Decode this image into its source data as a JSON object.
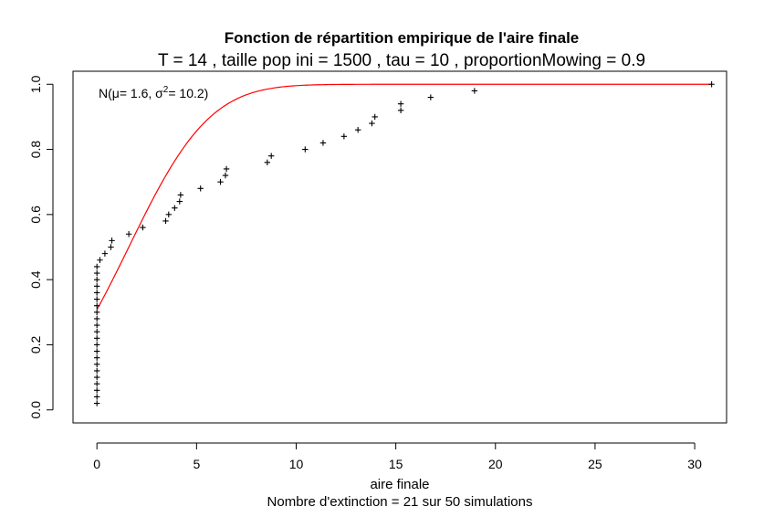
{
  "chart_data": {
    "type": "scatter",
    "title": "Fonction de répartition empirique de l'aire finale",
    "subtitle": "T = 14 , taille pop ini =  1500 , tau = 10 , proportionMowing = 0.9",
    "xlabel": "aire finale",
    "caption": "Nombre d'extinction =  21  sur  50  simulations",
    "ylabel": "",
    "xlim": [
      -1.2,
      31.6
    ],
    "ylim": [
      -0.04,
      1.04
    ],
    "x_ticks": [
      0,
      5,
      10,
      15,
      20,
      25,
      30
    ],
    "x_tick_labels": [
      "0",
      "5",
      "10",
      "15",
      "20",
      "25",
      "30"
    ],
    "y_ticks": [
      0.0,
      0.2,
      0.4,
      0.6,
      0.8,
      1.0
    ],
    "y_tick_labels": [
      "0.0",
      "0.2",
      "0.4",
      "0.6",
      "0.8",
      "1.0"
    ],
    "grid": false,
    "legend": {
      "prefix": "N(",
      "mu_label": "μ= 1.6, ",
      "sigma_symbol": "σ",
      "sigma_exp": "2",
      "sigma_value": "= 10.2)",
      "placement": "top-left"
    },
    "series": [
      {
        "name": "",
        "marker": "plus",
        "color": "#000000",
        "points": [
          [
            0,
            0.02
          ],
          [
            0,
            0.04
          ],
          [
            0,
            0.06
          ],
          [
            0,
            0.08
          ],
          [
            0,
            0.1
          ],
          [
            0,
            0.12
          ],
          [
            0,
            0.14
          ],
          [
            0,
            0.16
          ],
          [
            0,
            0.18
          ],
          [
            0,
            0.2
          ],
          [
            0,
            0.22
          ],
          [
            0,
            0.24
          ],
          [
            0,
            0.26
          ],
          [
            0,
            0.28
          ],
          [
            0,
            0.3
          ],
          [
            0,
            0.32
          ],
          [
            0,
            0.34
          ],
          [
            0,
            0.36
          ],
          [
            0,
            0.38
          ],
          [
            0,
            0.4
          ],
          [
            0,
            0.42
          ],
          [
            0,
            0.44
          ],
          [
            0.15,
            0.46
          ],
          [
            0.4,
            0.48
          ],
          [
            0.7,
            0.5
          ],
          [
            0.75,
            0.52
          ],
          [
            1.6,
            0.54
          ],
          [
            2.3,
            0.56
          ],
          [
            3.45,
            0.58
          ],
          [
            3.6,
            0.6
          ],
          [
            3.9,
            0.62
          ],
          [
            4.15,
            0.64
          ],
          [
            4.2,
            0.66
          ],
          [
            5.2,
            0.68
          ],
          [
            6.2,
            0.7
          ],
          [
            6.45,
            0.72
          ],
          [
            6.5,
            0.74
          ],
          [
            8.55,
            0.76
          ],
          [
            8.75,
            0.78
          ],
          [
            10.45,
            0.8
          ],
          [
            11.35,
            0.82
          ],
          [
            12.4,
            0.84
          ],
          [
            13.1,
            0.86
          ],
          [
            13.8,
            0.88
          ],
          [
            13.95,
            0.9
          ],
          [
            15.25,
            0.92
          ],
          [
            15.25,
            0.94
          ],
          [
            16.75,
            0.96
          ],
          [
            18.95,
            0.98
          ],
          [
            30.85,
            1.0
          ]
        ]
      },
      {
        "name": "",
        "type": "line",
        "color": "#ff0000",
        "distribution": "normal",
        "mu": 1.6,
        "sigma2": 10.2,
        "x_range": [
          0,
          30.85
        ]
      }
    ]
  }
}
